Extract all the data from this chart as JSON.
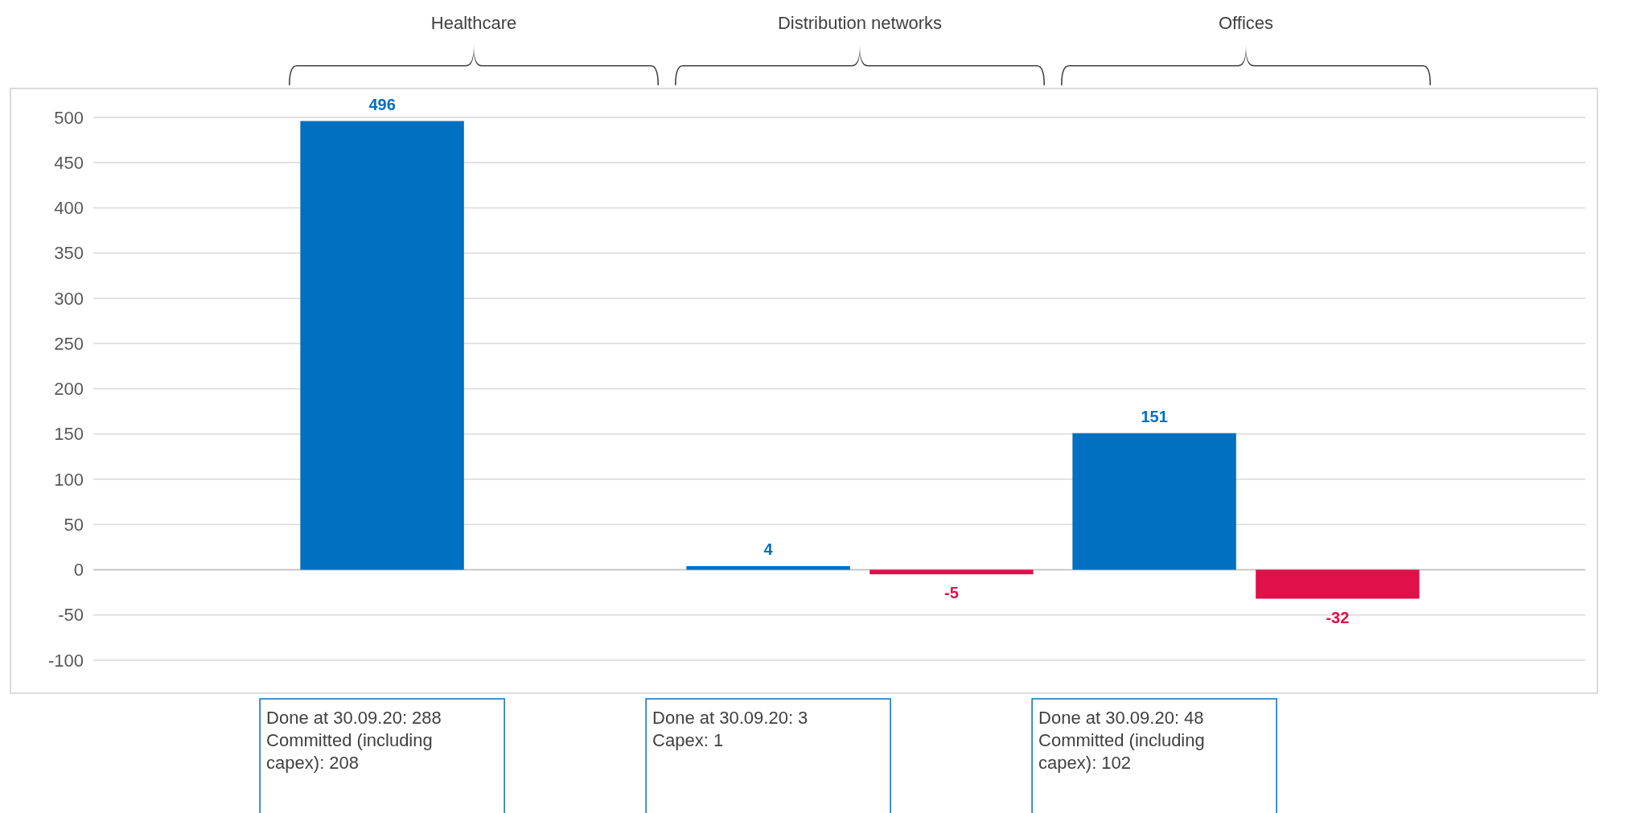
{
  "chart_data": {
    "type": "bar",
    "categories": [
      "Healthcare",
      "Distribution networks",
      "Offices"
    ],
    "series": [
      {
        "color": "#0070c0",
        "values": [
          496,
          4,
          151
        ]
      },
      {
        "color": "#e0104a",
        "values": [
          null,
          -5,
          -32
        ]
      }
    ],
    "ylim": [
      -100,
      500
    ],
    "yticks": [
      -100,
      -50,
      0,
      50,
      100,
      150,
      200,
      250,
      300,
      350,
      400,
      450,
      500
    ],
    "grid": "y",
    "data_labels": true,
    "annotations": [
      "Done at 30.09.20: 288\nCommitted (including\ncapex): 208",
      "Done at 30.09.20: 3\nCapex: 1",
      "Done at 30.09.20: 48\nCommitted (including\ncapex): 102"
    ]
  }
}
